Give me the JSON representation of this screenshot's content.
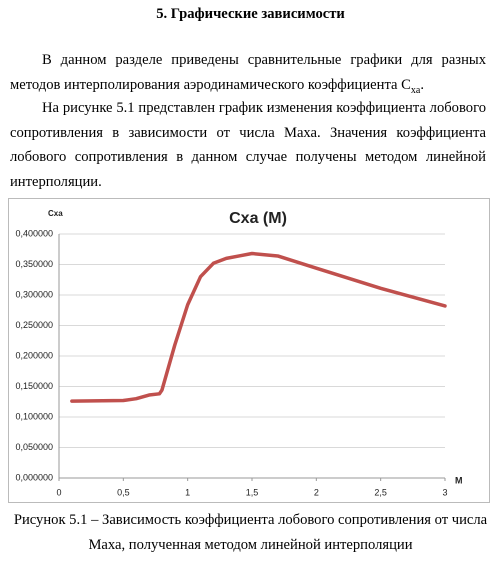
{
  "heading": "5. Графические зависимости",
  "paragraph_1": [
    "В данном разделе приведены сравнительные графики для разных методов интерполирования аэродинамического коэффициента C",
    "xa",
    "."
  ],
  "paragraph_2": "На рисунке 5.1 представлен график изменения коэффициента лобового сопротивления в зависимости от числа Маха. Значения коэффициента лобового сопротивления в данном случае получены методом линейной интерполяции.",
  "chart_data": {
    "type": "line",
    "title": "Cxa (M)",
    "y_label": "Cxa",
    "x_label": "M",
    "x": [
      0.1,
      0.5,
      0.6,
      0.7,
      0.78,
      0.8,
      0.9,
      1.0,
      1.1,
      1.2,
      1.3,
      1.4,
      1.5,
      1.7,
      2.0,
      2.5,
      3.0
    ],
    "values": [
      0.126,
      0.127,
      0.13,
      0.136,
      0.138,
      0.144,
      0.218,
      0.284,
      0.33,
      0.352,
      0.36,
      0.364,
      0.368,
      0.364,
      0.344,
      0.311,
      0.282
    ],
    "color": "#c0504d",
    "grid": true,
    "xlim": [
      0,
      3
    ],
    "xticks": [
      0,
      {
        "value": 0.5,
        "label": "0,5"
      },
      1,
      {
        "value": 1.5,
        "label": "1,5"
      },
      2,
      {
        "value": 2.5,
        "label": "2,5"
      },
      3
    ],
    "ylim": [
      0,
      0.4
    ],
    "yticks": [
      {
        "value": 0,
        "label": "0,000000"
      },
      {
        "value": 0.05,
        "label": "0,050000"
      },
      {
        "value": 0.1,
        "label": "0,100000"
      },
      {
        "value": 0.15,
        "label": "0,150000"
      },
      {
        "value": 0.2,
        "label": "0,200000"
      },
      {
        "value": 0.25,
        "label": "0,250000"
      },
      {
        "value": 0.3,
        "label": "0,300000"
      },
      {
        "value": 0.35,
        "label": "0,350000"
      },
      {
        "value": 0.4,
        "label": "0,400000"
      }
    ]
  },
  "caption": [
    "Рисунок 5.1 – Зависимость коэффициента лобового сопротивления от числа",
    "Маха, полученная методом линейной интерполяции"
  ]
}
